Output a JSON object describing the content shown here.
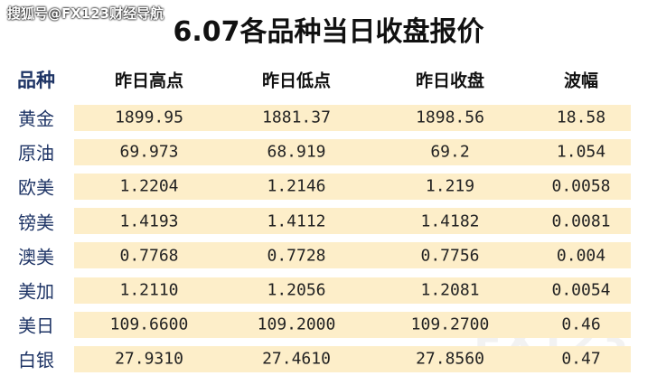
{
  "watermark": "搜狐号@FX123财经导航",
  "logo": "FX123",
  "title": "6.07各品种当日收盘报价",
  "table": {
    "header": [
      "品种",
      "昨日高点",
      "昨日低点",
      "昨日收盘",
      "波幅"
    ],
    "rows": [
      [
        "黄金",
        "1899.95",
        "1881.37",
        "1898.56",
        "18.58"
      ],
      [
        "原油",
        "69.973",
        "68.919",
        "69.2",
        "1.054"
      ],
      [
        "欧美",
        "1.2204",
        "1.2146",
        "1.219",
        "0.0058"
      ],
      [
        "镑美",
        "1.4193",
        "1.4112",
        "1.4182",
        "0.0081"
      ],
      [
        "澳美",
        "0.7768",
        "0.7728",
        "0.7756",
        "0.004"
      ],
      [
        "美加",
        "1.2110",
        "1.2056",
        "1.2081",
        "0.0054"
      ],
      [
        "美日",
        "109.6600",
        "109.2000",
        "109.2700",
        "0.46"
      ],
      [
        "白银",
        "27.9310",
        "27.4610",
        "27.8560",
        "0.47"
      ]
    ]
  }
}
